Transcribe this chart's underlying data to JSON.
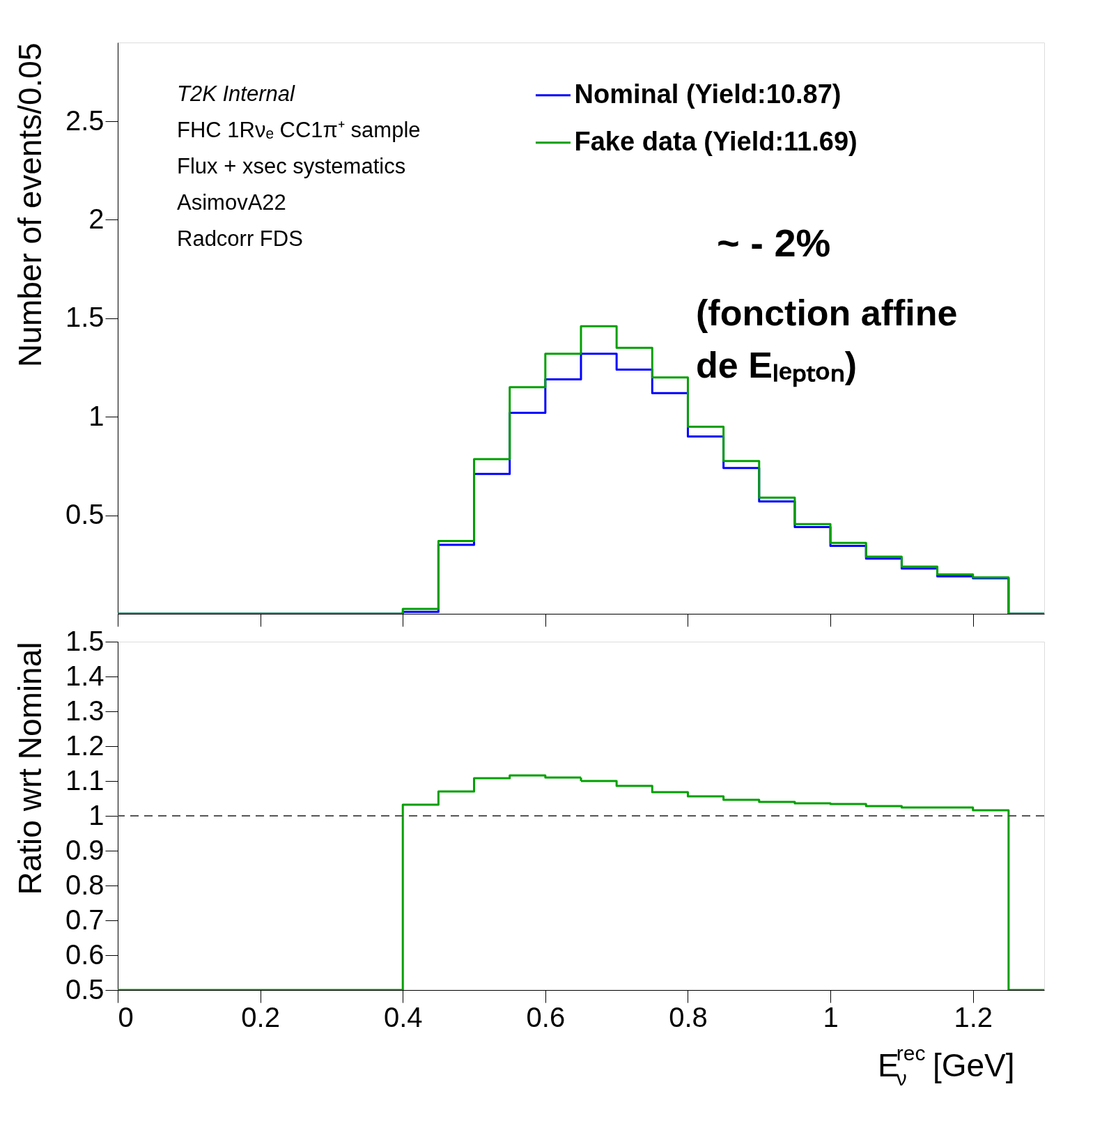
{
  "chart_data": [
    {
      "type": "histogram",
      "ylabel": "Number of events/0.05",
      "bins": [
        0,
        0.05,
        0.1,
        0.15,
        0.2,
        0.25,
        0.3,
        0.35,
        0.4,
        0.45,
        0.5,
        0.55,
        0.6,
        0.65,
        0.7,
        0.75,
        0.8,
        0.85,
        0.9,
        0.95,
        1.0,
        1.05,
        1.1,
        1.15,
        1.2,
        1.25,
        1.3
      ],
      "series": [
        {
          "name": "Nominal (Yield:10.87)",
          "color": "#0000ff",
          "values": [
            0,
            0,
            0,
            0,
            0,
            0,
            0,
            0,
            0.01,
            0.35,
            0.71,
            1.02,
            1.19,
            1.32,
            1.24,
            1.12,
            0.9,
            0.74,
            0.57,
            0.44,
            0.345,
            0.28,
            0.23,
            0.19,
            0.18,
            0
          ]
        },
        {
          "name": "Fake data (Yield:11.69)",
          "color": "#00a000",
          "values": [
            0,
            0,
            0,
            0,
            0,
            0,
            0,
            0,
            0.025,
            0.37,
            0.785,
            1.15,
            1.32,
            1.46,
            1.35,
            1.2,
            0.95,
            0.775,
            0.59,
            0.455,
            0.36,
            0.29,
            0.24,
            0.2,
            0.185,
            0
          ]
        }
      ],
      "xlim": [
        0,
        1.3
      ],
      "xticks": [
        0,
        0.2,
        0.4,
        0.6,
        0.8,
        1,
        1.2
      ],
      "ylim": [
        0,
        2.9
      ],
      "yticks": [
        0.5,
        1,
        1.5,
        2,
        2.5
      ],
      "tick_labels": "y",
      "legend": "top right",
      "grid": false,
      "line_style": "solid",
      "annotations": [
        "T2K Internal",
        "FHC 1Rνₑ CC1π⁺ sample",
        "Flux + xsec systematics",
        "AsimovA22",
        "Radcorr FDS",
        "~ - 2%",
        "(fonction affine",
        "de Eₗₑₚₜₒₙ)"
      ]
    },
    {
      "type": "histogram",
      "ylabel": "Ratio wrt Nominal",
      "xlabel": "E$^{rec}$$_{ν}$ [GeV]",
      "bins": [
        0,
        0.05,
        0.1,
        0.15,
        0.2,
        0.25,
        0.3,
        0.35,
        0.4,
        0.45,
        0.5,
        0.55,
        0.6,
        0.65,
        0.7,
        0.75,
        0.8,
        0.85,
        0.9,
        0.95,
        1.0,
        1.05,
        1.1,
        1.15,
        1.2,
        1.25,
        1.3
      ],
      "series": [
        {
          "color": "#00a000",
          "values": [
            0.5,
            0.5,
            0.5,
            0.5,
            0.5,
            0.5,
            0.5,
            0.5,
            1.032,
            1.07,
            1.108,
            1.116,
            1.11,
            1.1,
            1.086,
            1.068,
            1.056,
            1.046,
            1.04,
            1.036,
            1.034,
            1.028,
            1.024,
            1.024,
            1.016,
            0.5
          ]
        }
      ],
      "xlim": [
        0,
        1.3
      ],
      "xticks": [
        "0",
        0.2,
        0.4,
        0.6,
        0.8,
        1,
        1.2
      ],
      "ylim": [
        0.5,
        1.5
      ],
      "yticks": [
        0.5,
        0.6,
        0.7,
        0.8,
        0.9,
        1,
        1.1,
        1.2,
        1.3,
        1.4,
        1.5
      ],
      "grid": false,
      "line_style": "solid",
      "ref_lines": [
        {
          "axis": "y",
          "value": 1,
          "color": "#555555",
          "line_style": "dashed"
        }
      ]
    }
  ]
}
